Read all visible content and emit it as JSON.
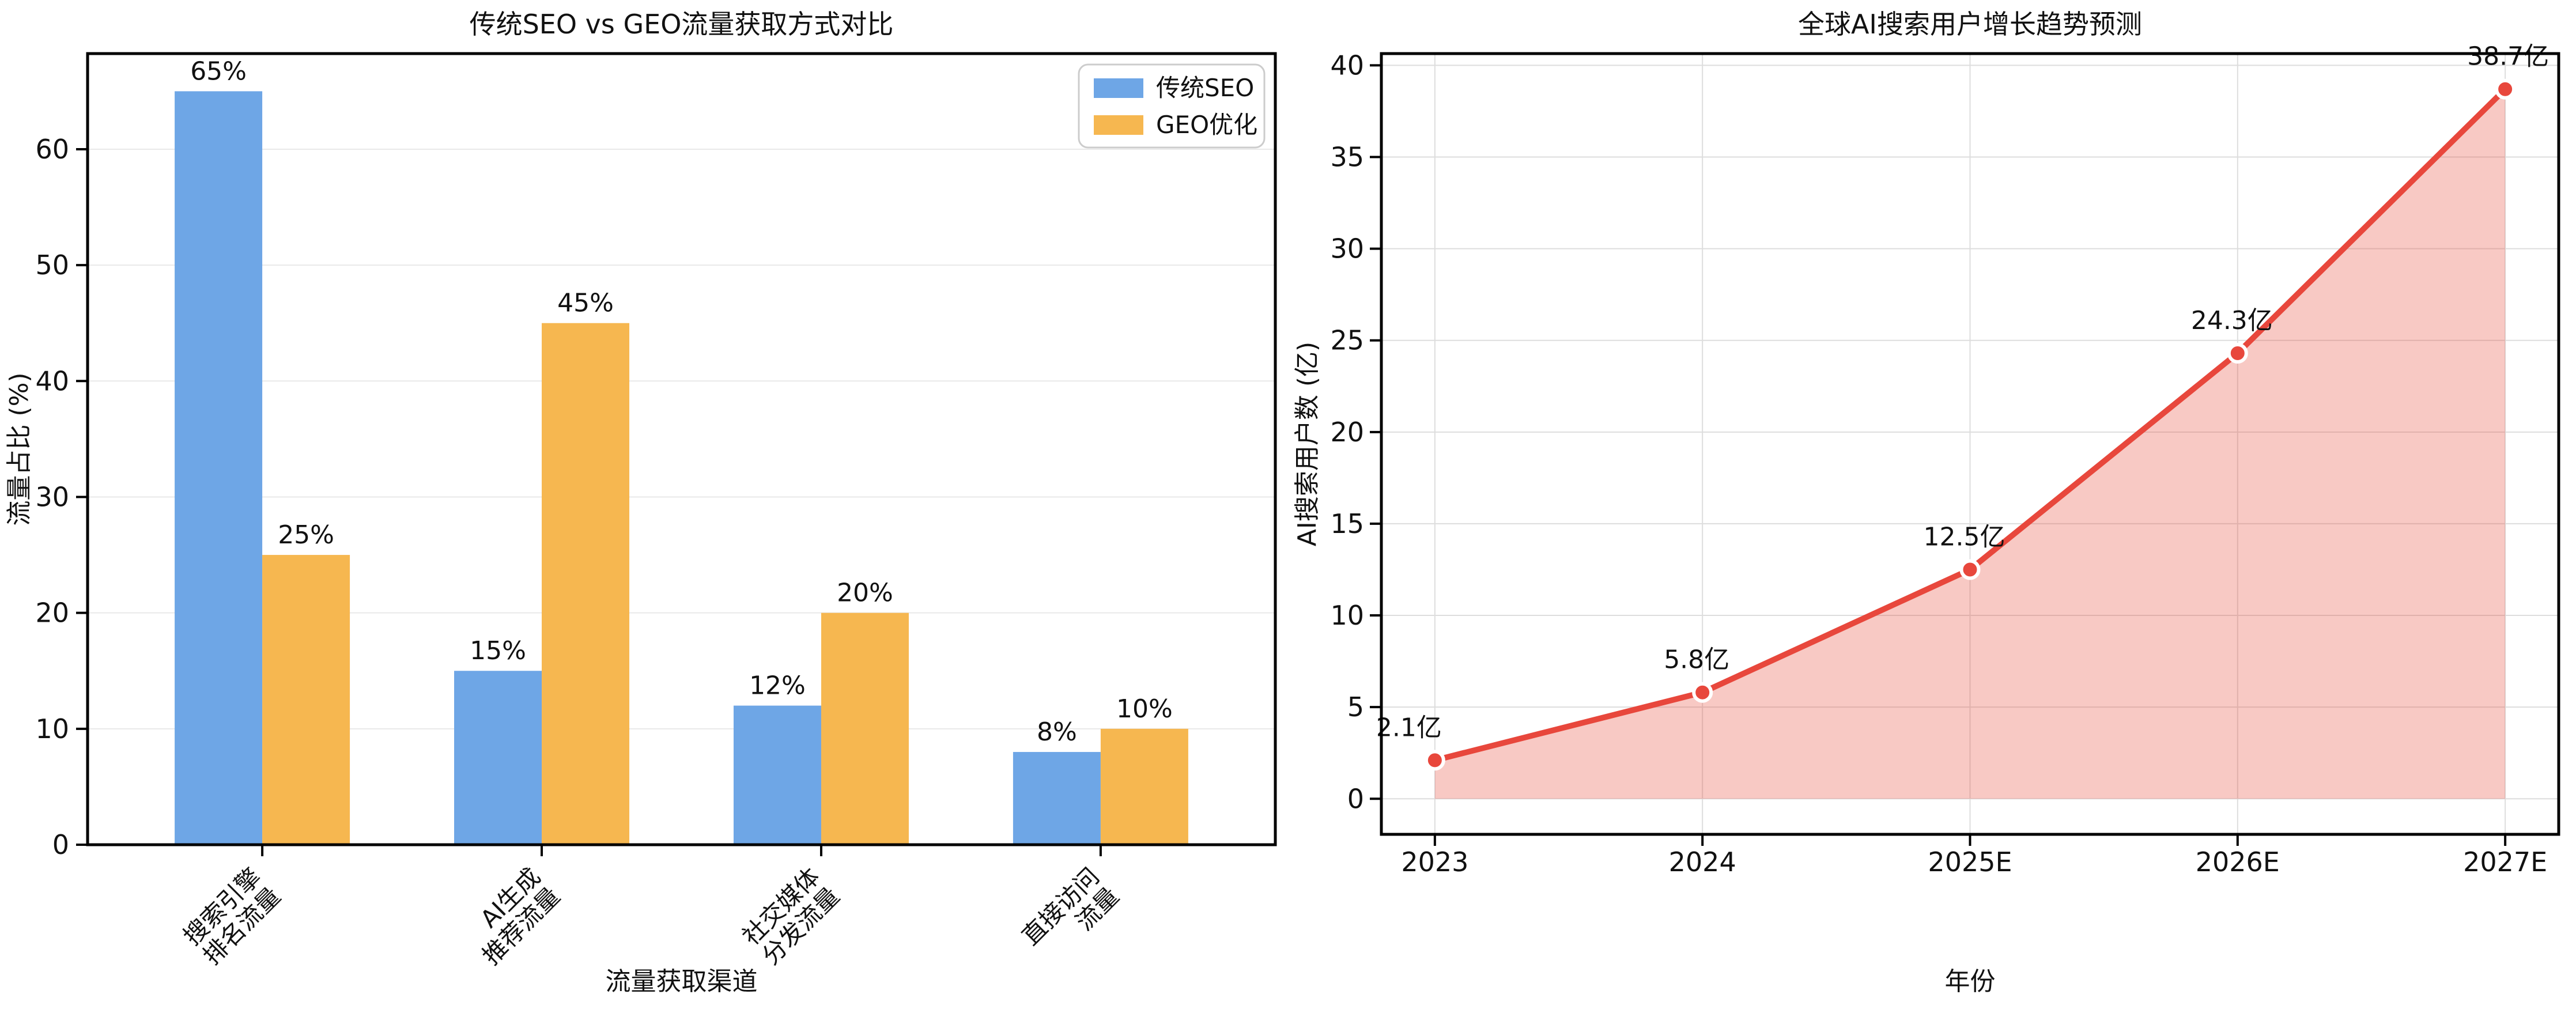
{
  "figure": {
    "background": "#ffffff",
    "text_color": "#111111",
    "spine_color": "#000000"
  },
  "chart_data": [
    {
      "type": "bar",
      "title": "传统SEO vs GEO流量获取方式对比",
      "xlabel": "流量获取渠道",
      "ylabel": "流量占比 (%)",
      "categories": [
        "搜索引擎\n排名流量",
        "AI生成\n推荐流量",
        "社交媒体\n分发流量",
        "直接访问\n流量"
      ],
      "series": [
        {
          "name": "传统SEO",
          "color": "#6EA6E6",
          "values": [
            65,
            15,
            12,
            8
          ],
          "labels": [
            "65%",
            "15%",
            "12%",
            "8%"
          ]
        },
        {
          "name": "GEO优化",
          "color": "#F6B750",
          "values": [
            25,
            45,
            20,
            10
          ],
          "labels": [
            "25%",
            "45%",
            "20%",
            "10%"
          ]
        }
      ],
      "ylim": [
        0,
        68.25
      ],
      "yticks": [
        0,
        10,
        20,
        30,
        40,
        50,
        60
      ],
      "grid": "horizontal",
      "gridline_color": "#e9e9e9",
      "legend_position": "top-right",
      "legend_border_color": "#cccccc"
    },
    {
      "type": "line",
      "title": "全球AI搜索用户增长趋势预测",
      "xlabel": "年份",
      "ylabel": "AI搜索用户数 (亿)",
      "x": [
        "2023",
        "2024",
        "2025E",
        "2026E",
        "2027E"
      ],
      "values": [
        2.1,
        5.8,
        12.5,
        24.3,
        38.7
      ],
      "point_labels": [
        "2.1亿",
        "5.8亿",
        "12.5亿",
        "24.3亿",
        "38.7亿"
      ],
      "line_color": "#E8473C",
      "marker_color": "#E8473C",
      "marker_edge_color": "#ffffff",
      "fill_color": "#E74C3C",
      "fill_opacity": 0.3,
      "ylim": [
        -1.94,
        40.64
      ],
      "yticks": [
        0,
        5,
        10,
        15,
        20,
        25,
        30,
        35,
        40
      ],
      "grid": "both",
      "gridline_color": "#dddddd"
    }
  ]
}
